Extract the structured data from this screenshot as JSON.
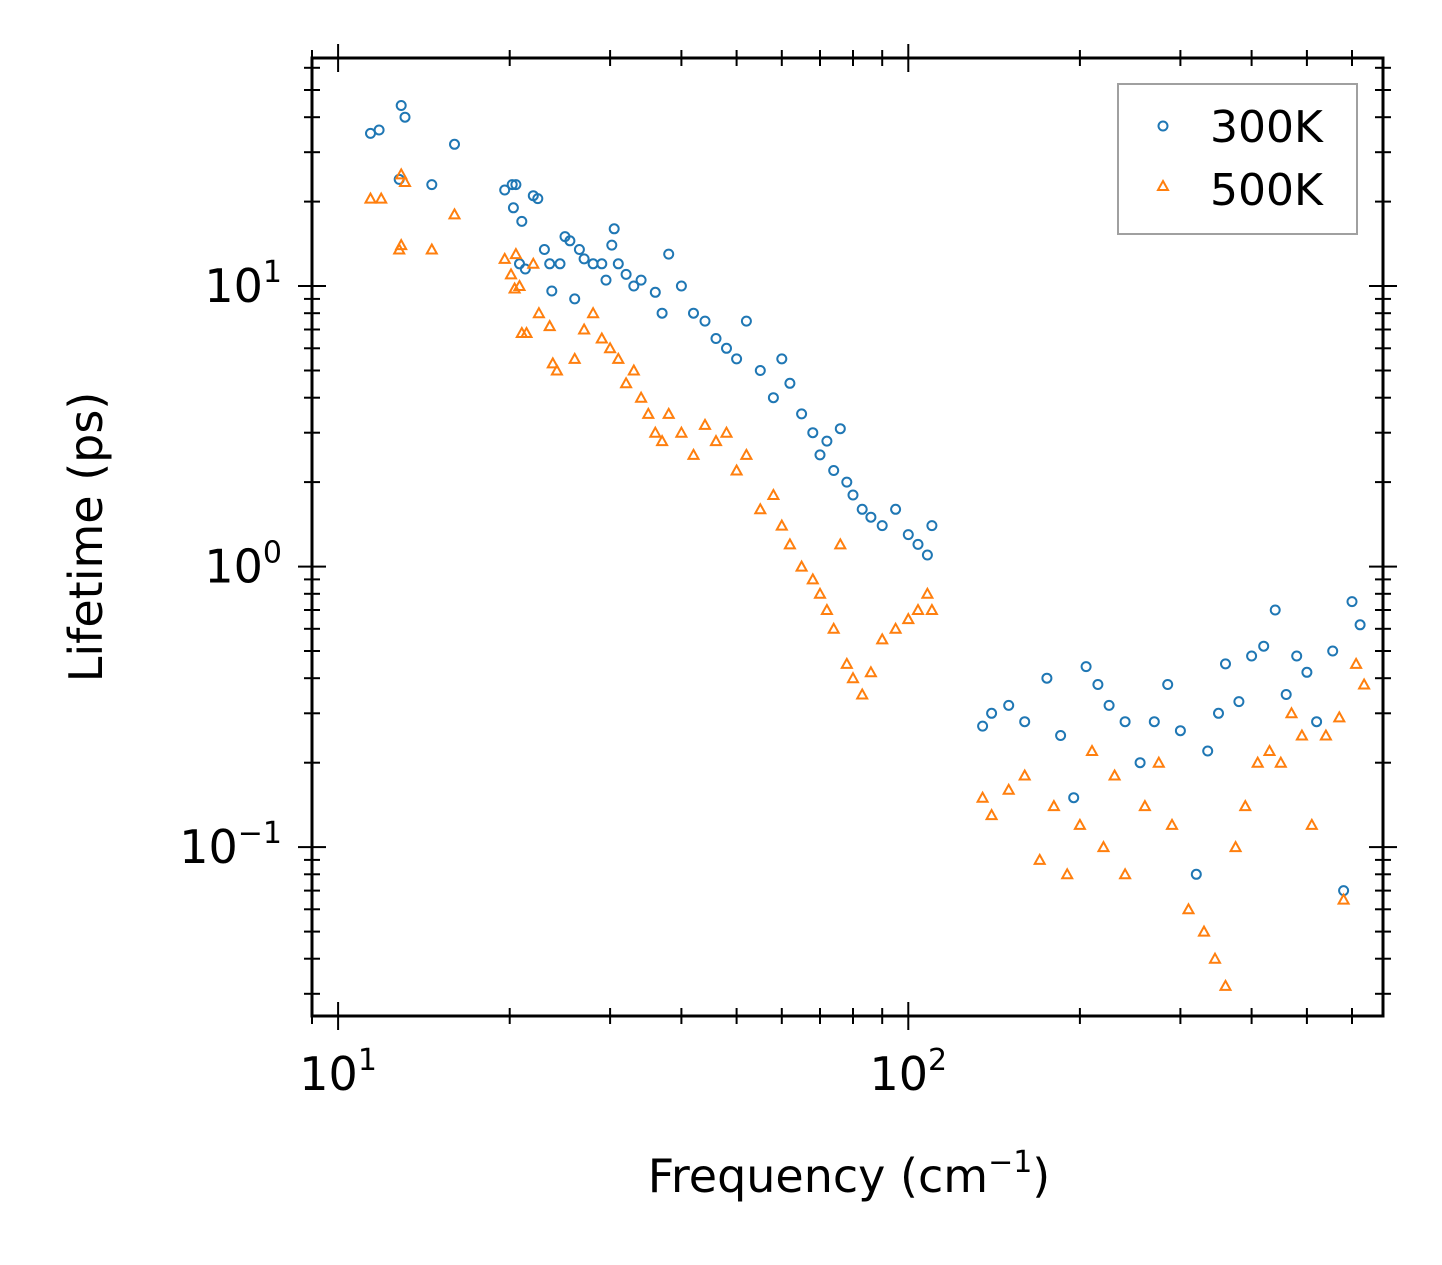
{
  "chart_data": {
    "type": "scatter",
    "xscale": "log",
    "yscale": "log",
    "xlabel": "Frequency (cm",
    "xlabel_sup": "−1",
    "xlabel_end": ")",
    "ylabel": "Lifetime (ps)",
    "xlim": [
      9,
      680
    ],
    "ylim": [
      0.025,
      65
    ],
    "x_ticks": [
      {
        "value": 10,
        "base": "10",
        "exp": "1"
      },
      {
        "value": 100,
        "base": "10",
        "exp": "2"
      }
    ],
    "y_ticks": [
      {
        "value": 0.1,
        "base": "10",
        "exp": "−1"
      },
      {
        "value": 1,
        "base": "10",
        "exp": "0"
      },
      {
        "value": 10,
        "base": "10",
        "exp": "1"
      }
    ],
    "legend_position": "top-right",
    "series": [
      {
        "name": "300K",
        "marker": "circle",
        "color": "#1f77b4",
        "points": [
          [
            11.4,
            35
          ],
          [
            11.8,
            36
          ],
          [
            12.9,
            44
          ],
          [
            13.1,
            40
          ],
          [
            12.8,
            24
          ],
          [
            14.6,
            23
          ],
          [
            16,
            32
          ],
          [
            19.6,
            22
          ],
          [
            20.2,
            23
          ],
          [
            20.5,
            23
          ],
          [
            20.3,
            19
          ],
          [
            21,
            17
          ],
          [
            20.8,
            12
          ],
          [
            21.3,
            11.5
          ],
          [
            22,
            21
          ],
          [
            22.4,
            20.5
          ],
          [
            23,
            13.5
          ],
          [
            23.5,
            12
          ],
          [
            23.7,
            9.6
          ],
          [
            24.5,
            12
          ],
          [
            25,
            15
          ],
          [
            25.5,
            14.5
          ],
          [
            26,
            9
          ],
          [
            26.5,
            13.5
          ],
          [
            27,
            12.5
          ],
          [
            28,
            12
          ],
          [
            29,
            12
          ],
          [
            29.5,
            10.5
          ],
          [
            30.2,
            14
          ],
          [
            30.5,
            16
          ],
          [
            31,
            12
          ],
          [
            32,
            11
          ],
          [
            33,
            10
          ],
          [
            34,
            10.5
          ],
          [
            36,
            9.5
          ],
          [
            37,
            8
          ],
          [
            38,
            13
          ],
          [
            40,
            10
          ],
          [
            42,
            8
          ],
          [
            44,
            7.5
          ],
          [
            46,
            6.5
          ],
          [
            48,
            6
          ],
          [
            50,
            5.5
          ],
          [
            52,
            7.5
          ],
          [
            55,
            5
          ],
          [
            58,
            4
          ],
          [
            60,
            5.5
          ],
          [
            62,
            4.5
          ],
          [
            65,
            3.5
          ],
          [
            68,
            3
          ],
          [
            70,
            2.5
          ],
          [
            72,
            2.8
          ],
          [
            74,
            2.2
          ],
          [
            76,
            3.1
          ],
          [
            78,
            2
          ],
          [
            80,
            1.8
          ],
          [
            83,
            1.6
          ],
          [
            86,
            1.5
          ],
          [
            90,
            1.4
          ],
          [
            95,
            1.6
          ],
          [
            100,
            1.3
          ],
          [
            104,
            1.2
          ],
          [
            108,
            1.1
          ],
          [
            110,
            1.4
          ],
          [
            135,
            0.27
          ],
          [
            140,
            0.3
          ],
          [
            150,
            0.32
          ],
          [
            160,
            0.28
          ],
          [
            175,
            0.4
          ],
          [
            185,
            0.25
          ],
          [
            195,
            0.15
          ],
          [
            205,
            0.44
          ],
          [
            215,
            0.38
          ],
          [
            225,
            0.32
          ],
          [
            240,
            0.28
          ],
          [
            255,
            0.2
          ],
          [
            270,
            0.28
          ],
          [
            285,
            0.38
          ],
          [
            300,
            0.26
          ],
          [
            320,
            0.08
          ],
          [
            335,
            0.22
          ],
          [
            350,
            0.3
          ],
          [
            360,
            0.45
          ],
          [
            380,
            0.33
          ],
          [
            400,
            0.48
          ],
          [
            420,
            0.52
          ],
          [
            440,
            0.7
          ],
          [
            460,
            0.35
          ],
          [
            480,
            0.48
          ],
          [
            500,
            0.42
          ],
          [
            520,
            0.28
          ],
          [
            555,
            0.5
          ],
          [
            580,
            0.07
          ],
          [
            600,
            0.75
          ],
          [
            620,
            0.62
          ]
        ]
      },
      {
        "name": "500K",
        "marker": "triangle",
        "color": "#ff7f0e",
        "points": [
          [
            11.4,
            20.5
          ],
          [
            11.9,
            20.5
          ],
          [
            12.9,
            25
          ],
          [
            13.1,
            23.5
          ],
          [
            12.9,
            14
          ],
          [
            12.8,
            13.5
          ],
          [
            14.6,
            13.5
          ],
          [
            16,
            18
          ],
          [
            19.6,
            12.5
          ],
          [
            20.1,
            11
          ],
          [
            20.5,
            13
          ],
          [
            20.8,
            10
          ],
          [
            20.4,
            9.8
          ],
          [
            21,
            6.8
          ],
          [
            21.4,
            6.8
          ],
          [
            22,
            12
          ],
          [
            22.5,
            8
          ],
          [
            23.5,
            7.2
          ],
          [
            23.8,
            5.3
          ],
          [
            24.2,
            5
          ],
          [
            26,
            5.5
          ],
          [
            27,
            7
          ],
          [
            28,
            8
          ],
          [
            29,
            6.5
          ],
          [
            30,
            6
          ],
          [
            31,
            5.5
          ],
          [
            32,
            4.5
          ],
          [
            33,
            5
          ],
          [
            34,
            4
          ],
          [
            35,
            3.5
          ],
          [
            36,
            3
          ],
          [
            37,
            2.8
          ],
          [
            38,
            3.5
          ],
          [
            40,
            3
          ],
          [
            42,
            2.5
          ],
          [
            44,
            3.2
          ],
          [
            46,
            2.8
          ],
          [
            48,
            3
          ],
          [
            50,
            2.2
          ],
          [
            52,
            2.5
          ],
          [
            55,
            1.6
          ],
          [
            58,
            1.8
          ],
          [
            60,
            1.4
          ],
          [
            62,
            1.2
          ],
          [
            65,
            1
          ],
          [
            68,
            0.9
          ],
          [
            70,
            0.8
          ],
          [
            72,
            0.7
          ],
          [
            74,
            0.6
          ],
          [
            76,
            1.2
          ],
          [
            78,
            0.45
          ],
          [
            80,
            0.4
          ],
          [
            83,
            0.35
          ],
          [
            86,
            0.42
          ],
          [
            90,
            0.55
          ],
          [
            95,
            0.6
          ],
          [
            100,
            0.65
          ],
          [
            104,
            0.7
          ],
          [
            108,
            0.8
          ],
          [
            110,
            0.7
          ],
          [
            135,
            0.15
          ],
          [
            140,
            0.13
          ],
          [
            150,
            0.16
          ],
          [
            160,
            0.18
          ],
          [
            170,
            0.09
          ],
          [
            180,
            0.14
          ],
          [
            190,
            0.08
          ],
          [
            200,
            0.12
          ],
          [
            210,
            0.22
          ],
          [
            220,
            0.1
          ],
          [
            230,
            0.18
          ],
          [
            240,
            0.08
          ],
          [
            260,
            0.14
          ],
          [
            275,
            0.2
          ],
          [
            290,
            0.12
          ],
          [
            310,
            0.06
          ],
          [
            330,
            0.05
          ],
          [
            345,
            0.04
          ],
          [
            360,
            0.032
          ],
          [
            375,
            0.1
          ],
          [
            390,
            0.14
          ],
          [
            410,
            0.2
          ],
          [
            430,
            0.22
          ],
          [
            450,
            0.2
          ],
          [
            470,
            0.3
          ],
          [
            490,
            0.25
          ],
          [
            510,
            0.12
          ],
          [
            540,
            0.25
          ],
          [
            570,
            0.29
          ],
          [
            580,
            0.065
          ],
          [
            610,
            0.45
          ],
          [
            630,
            0.38
          ]
        ]
      }
    ]
  }
}
